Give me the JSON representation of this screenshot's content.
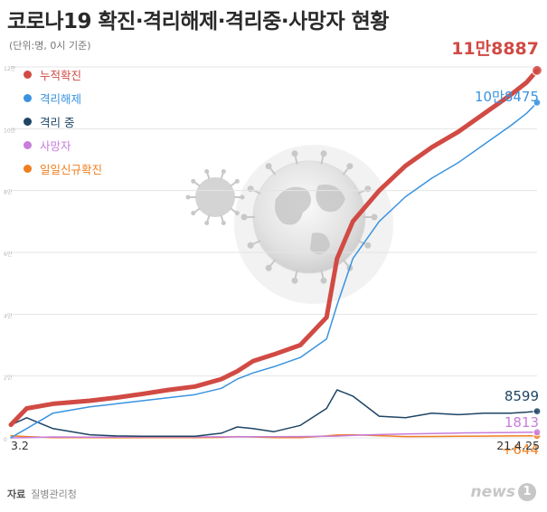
{
  "title": "코로나19 확진·격리해제·격리중·사망자 현황",
  "subtitle": "(단위:명, 0시 기준)",
  "source_label": "자료",
  "source_value": "질병관리청",
  "brand_text": "news",
  "brand_badge": "1",
  "chart_data": {
    "type": "line",
    "x_start_label": "3.2",
    "x_end_label": "21.4.25",
    "ylim": [
      0,
      120000
    ],
    "yticks": [
      0,
      20000,
      40000,
      60000,
      80000,
      100000,
      120000
    ],
    "ytick_labels": [
      "0",
      "2만",
      "4만",
      "6만",
      "8만",
      "10만",
      "12만"
    ],
    "grid": true,
    "legend_position": "top-left",
    "x": [
      0,
      0.03,
      0.08,
      0.15,
      0.2,
      0.25,
      0.3,
      0.35,
      0.4,
      0.43,
      0.46,
      0.5,
      0.55,
      0.6,
      0.62,
      0.65,
      0.7,
      0.75,
      0.8,
      0.85,
      0.9,
      0.95,
      0.98,
      1.0
    ],
    "series": [
      {
        "name": "누적확진",
        "color": "#d14a44",
        "end_label": "11만8887",
        "end_value": 118887,
        "values": [
          4200,
          9500,
          11000,
          12000,
          13000,
          14200,
          15500,
          16600,
          19000,
          21500,
          24800,
          27000,
          30000,
          39000,
          58000,
          70000,
          80000,
          88000,
          94000,
          99000,
          105000,
          111000,
          115000,
          118887
        ]
      },
      {
        "name": "격리해제",
        "color": "#3a93e0",
        "end_label": "10만8475",
        "end_value": 108475,
        "values": [
          30,
          3000,
          8000,
          10000,
          11000,
          12000,
          13000,
          14000,
          16000,
          19000,
          21000,
          23000,
          26000,
          32000,
          43000,
          58000,
          70000,
          78000,
          84000,
          89000,
          95000,
          101000,
          105000,
          108475
        ]
      },
      {
        "name": "격리 중",
        "color": "#1e4564",
        "end_label": "8599",
        "end_value": 8599,
        "values": [
          4170,
          6500,
          3000,
          1000,
          600,
          500,
          500,
          500,
          1500,
          3500,
          3000,
          2000,
          4000,
          9500,
          15500,
          13500,
          7000,
          6500,
          8000,
          7500,
          8000,
          8000,
          8300,
          8599
        ]
      },
      {
        "name": "사망자",
        "color": "#c77ddb",
        "end_label": "1813",
        "end_value": 1813,
        "values": [
          0,
          50,
          300,
          200,
          250,
          280,
          300,
          300,
          320,
          330,
          350,
          380,
          420,
          500,
          560,
          800,
          1050,
          1250,
          1400,
          1550,
          1650,
          1740,
          1780,
          1813
        ]
      },
      {
        "name": "일일신규확진",
        "color": "#f07e1e",
        "end_label": "+644",
        "end_value": 644,
        "values": [
          686,
          400,
          100,
          50,
          40,
          50,
          60,
          50,
          150,
          400,
          300,
          100,
          100,
          600,
          900,
          1000,
          700,
          400,
          450,
          500,
          550,
          600,
          620,
          644
        ]
      }
    ]
  }
}
